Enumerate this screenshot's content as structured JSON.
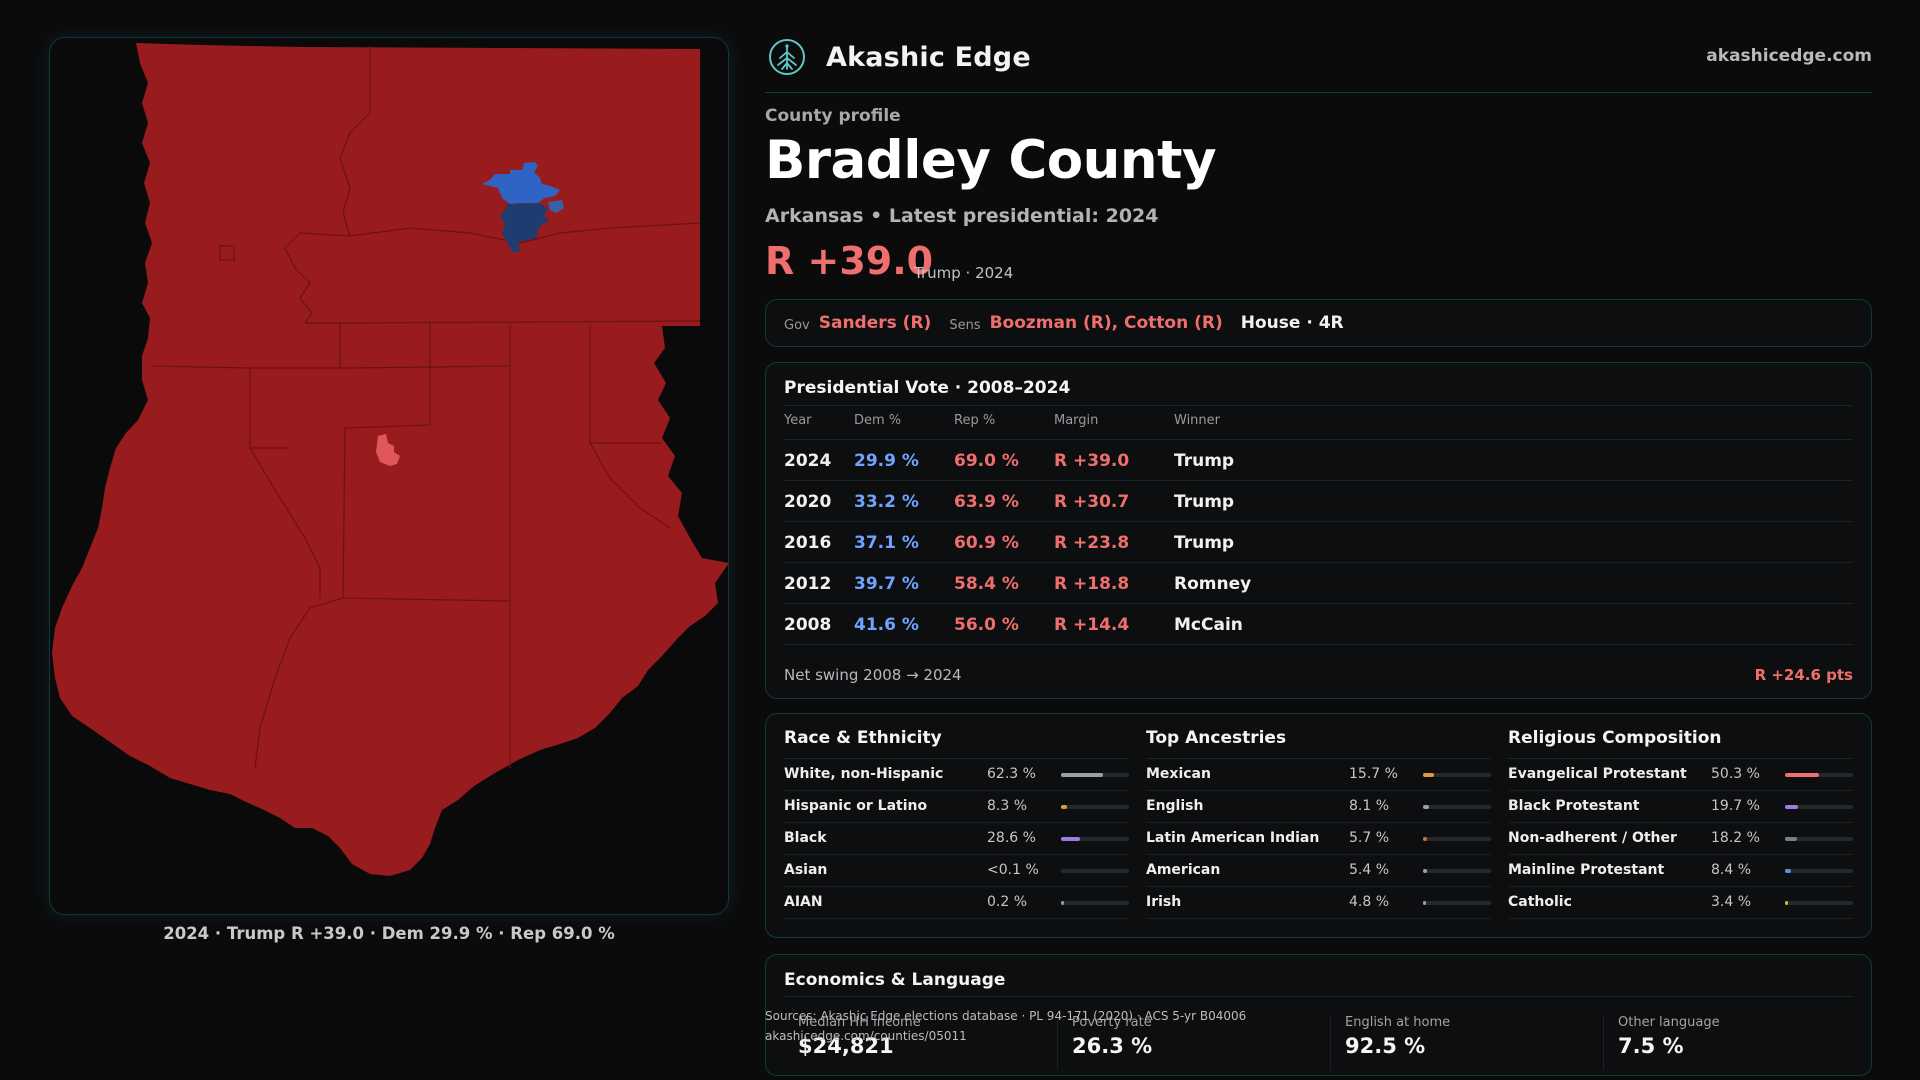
{
  "brand": {
    "name": "Akashic Edge",
    "url": "akashicedge.com",
    "logo_icon": "tree-logo-icon"
  },
  "profile": {
    "eyebrow": "County profile",
    "county": "Bradley County",
    "subtitle": "Arkansas • Latest presidential: 2024",
    "margin": "R +39.0",
    "margin_note": "Trump · 2024"
  },
  "officials": {
    "gov_label": "Gov",
    "gov": "Sanders (R)",
    "sens_label": "Sens",
    "sens": "Boozman (R), Cotton (R)",
    "house": "House · 4R"
  },
  "presidential": {
    "title": "Presidential Vote · 2008–2024",
    "headers": [
      "Year",
      "Dem %",
      "Rep %",
      "Margin",
      "Winner"
    ],
    "rows": [
      {
        "year": "2024",
        "dem": "29.9 %",
        "rep": "69.0 %",
        "margin": "R +39.0",
        "winner": "Trump"
      },
      {
        "year": "2020",
        "dem": "33.2 %",
        "rep": "63.9 %",
        "margin": "R +30.7",
        "winner": "Trump"
      },
      {
        "year": "2016",
        "dem": "37.1 %",
        "rep": "60.9 %",
        "margin": "R +23.8",
        "winner": "Trump"
      },
      {
        "year": "2012",
        "dem": "39.7 %",
        "rep": "58.4 %",
        "margin": "R +18.8",
        "winner": "Romney"
      },
      {
        "year": "2008",
        "dem": "41.6 %",
        "rep": "56.0 %",
        "margin": "R +14.4",
        "winner": "McCain"
      }
    ],
    "swing_label": "Net swing 2008 → 2024",
    "swing_value": "R +24.6 pts"
  },
  "race": {
    "title": "Race & Ethnicity",
    "rows": [
      {
        "label": "White, non-Hispanic",
        "value": "62.3 %",
        "pct": 0.623,
        "color": "#9aa0aa"
      },
      {
        "label": "Hispanic or Latino",
        "value": "8.3 %",
        "pct": 0.083,
        "color": "#e29a3a"
      },
      {
        "label": "Black",
        "value": "28.6 %",
        "pct": 0.286,
        "color": "#a07ce0"
      },
      {
        "label": "Asian",
        "value": "<0.1 %",
        "pct": 0.0,
        "color": "#5f8ee0"
      },
      {
        "label": "AIAN",
        "value": "0.2 %",
        "pct": 0.002,
        "color": "#8aa0a0"
      }
    ]
  },
  "ancestry": {
    "title": "Top Ancestries",
    "rows": [
      {
        "label": "Mexican",
        "value": "15.7 %",
        "pct": 0.157,
        "color": "#e29a3a"
      },
      {
        "label": "English",
        "value": "8.1 %",
        "pct": 0.081,
        "color": "#9aa0aa"
      },
      {
        "label": "Latin American Indian",
        "value": "5.7 %",
        "pct": 0.057,
        "color": "#d46f3a"
      },
      {
        "label": "American",
        "value": "5.4 %",
        "pct": 0.054,
        "color": "#9aa0aa"
      },
      {
        "label": "Irish",
        "value": "4.8 %",
        "pct": 0.048,
        "color": "#9aa0aa"
      }
    ]
  },
  "religion": {
    "title": "Religious Composition",
    "rows": [
      {
        "label": "Evangelical Protestant",
        "value": "50.3 %",
        "pct": 0.503,
        "color": "#ef6e6e"
      },
      {
        "label": "Black Protestant",
        "value": "19.7 %",
        "pct": 0.197,
        "color": "#a07ce0"
      },
      {
        "label": "Non-adherent / Other",
        "value": "18.2 %",
        "pct": 0.182,
        "color": "#7a7f86"
      },
      {
        "label": "Mainline Protestant",
        "value": "8.4 %",
        "pct": 0.084,
        "color": "#5f8ee0"
      },
      {
        "label": "Catholic",
        "value": "3.4 %",
        "pct": 0.034,
        "color": "#d9b23a"
      }
    ]
  },
  "economics": {
    "title": "Economics & Language",
    "metrics": [
      {
        "label": "Median HH income",
        "value": "$24,821"
      },
      {
        "label": "Poverty rate",
        "value": "26.3 %"
      },
      {
        "label": "English at home",
        "value": "92.5 %"
      },
      {
        "label": "Other language",
        "value": "7.5 %"
      }
    ]
  },
  "sources": {
    "line1": "Sources: Akashic Edge elections database · PL 94-171 (2020) · ACS 5-yr B04006",
    "line2": "akashicedge.com/counties/05011"
  },
  "map": {
    "caption": "2024 · Trump R +39.0 · Dem 29.9 % · Rep 69.0 %",
    "rep_color": "#981b1e",
    "dem_color": "#2f63c4"
  }
}
